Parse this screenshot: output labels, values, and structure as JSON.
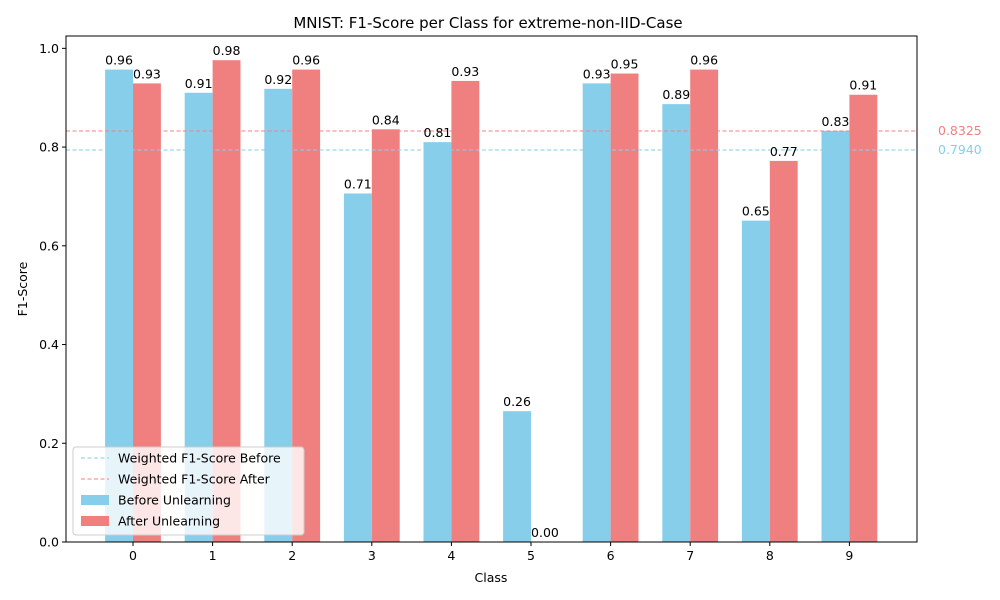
{
  "chart_data": {
    "type": "bar",
    "title": "MNIST: F1-Score per Class for extreme-non-IID-Case",
    "xlabel": "Class",
    "ylabel": "F1-Score",
    "ylim": [
      0,
      1.025
    ],
    "yticks": [
      0.0,
      0.2,
      0.4,
      0.6,
      0.8,
      1.0
    ],
    "ytick_labels": [
      "0.0",
      "0.2",
      "0.4",
      "0.6",
      "0.8",
      "1.0"
    ],
    "categories": [
      "0",
      "1",
      "2",
      "3",
      "4",
      "5",
      "6",
      "7",
      "8",
      "9"
    ],
    "series": [
      {
        "name": "Before Unlearning",
        "color": "#87CEEB",
        "values": [
          0.957,
          0.91,
          0.918,
          0.706,
          0.81,
          0.265,
          0.929,
          0.887,
          0.651,
          0.833
        ],
        "labels": [
          "0.96",
          "0.91",
          "0.92",
          "0.71",
          "0.81",
          "0.26",
          "0.93",
          "0.89",
          "0.65",
          "0.83"
        ]
      },
      {
        "name": "After Unlearning",
        "color": "#F08080",
        "values": [
          0.929,
          0.976,
          0.957,
          0.836,
          0.934,
          0.0,
          0.949,
          0.957,
          0.772,
          0.906
        ],
        "labels": [
          "0.93",
          "0.98",
          "0.96",
          "0.84",
          "0.93",
          "0.00",
          "0.95",
          "0.96",
          "0.77",
          "0.91"
        ]
      }
    ],
    "reference_lines": [
      {
        "name": "Weighted F1-Score Before",
        "value": 0.794,
        "label": "0.7940",
        "color": "#87CEEB"
      },
      {
        "name": "Weighted F1-Score After",
        "value": 0.8325,
        "label": "0.8325",
        "color": "#F08080"
      }
    ],
    "legend_position": "lower-left",
    "grid": false
  }
}
